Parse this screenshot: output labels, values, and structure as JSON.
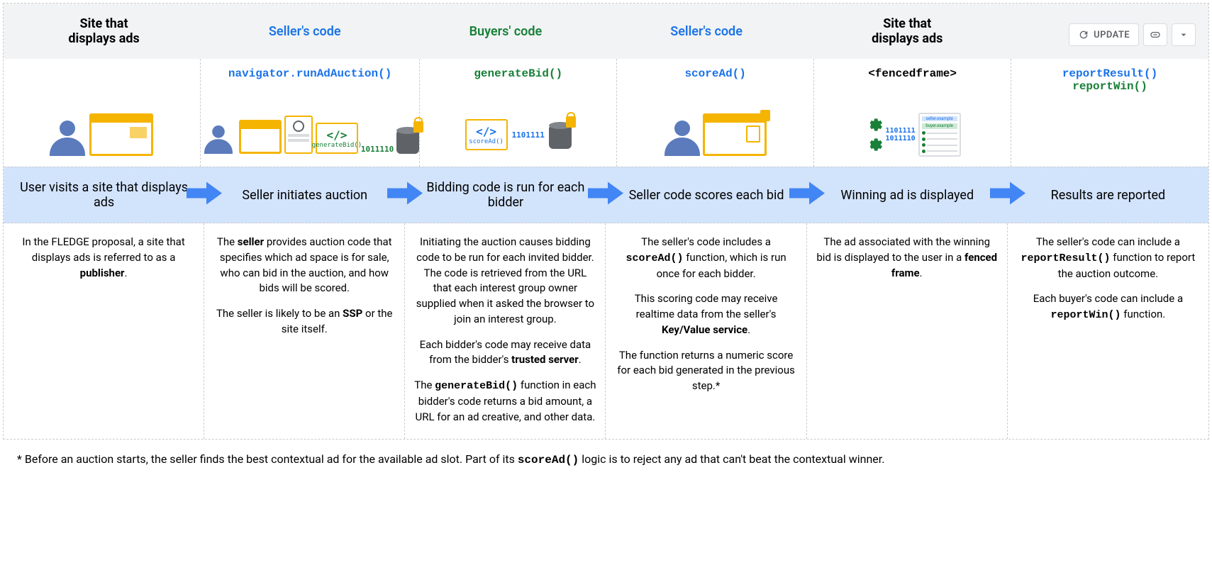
{
  "colors": {
    "seller": "#1a73e8",
    "buyer": "#188038",
    "band": "#d2e3fc",
    "arrow": "#4285f4",
    "border": "#cccccc",
    "headerbg": "#f1f3f4",
    "accent": "#f5b400",
    "person": "#5b7bbd"
  },
  "controls": {
    "update": "UPDATE"
  },
  "columns": [
    {
      "header": "Site that\ndisplays ads",
      "header_class": "",
      "code_html": "",
      "icon": "user-site",
      "flow": "User visits a site that displays ads",
      "desc_html": "<p>In the FLEDGE proposal, a site that displays ads is referred to as a <b>publisher</b>.</p>"
    },
    {
      "header": "Seller's code",
      "header_class": "seller",
      "code_html": "<span class='nav'>navigator.</span><span class='seller-fn'>runAdAuction()</span>",
      "icon": "seller-init",
      "flow": "Seller initiates auction",
      "desc_html": "<p>The <b>seller</b> provides auction code that specifies which ad space is for sale, who can bid in the auction, and how bids will be scored.</p><p>The seller is likely to be an <b>SSP</b> or the site itself.</p>"
    },
    {
      "header": "Buyers' code",
      "header_class": "buyer",
      "code_html": "<span class='buyer-fn'>generateBid()</span>",
      "icon": "buyer-bid",
      "flow": "Bidding code is run for each bidder",
      "desc_html": "<p>Initiating the auction causes bidding code to be run for each invited bidder.  The code is retrieved from the URL that each interest group owner supplied when it asked the browser to join an interest group.</p><p>Each bidder's code may receive data from the bidder's <b>trusted server</b>.</p><p>The <span class='mono'>generateBid()</span> function in each bidder's code returns a bid amount, a URL for an ad creative, and other data.</p>"
    },
    {
      "header": "Seller's code",
      "header_class": "seller",
      "code_html": "<span class='seller-fn'>scoreAd()</span>",
      "icon": "seller-score",
      "flow": "Seller code scores each bid",
      "desc_html": "<p>The seller's code includes a <span class='mono'>scoreAd()</span> function, which is run once for each bidder.</p><p>This scoring code may receive realtime data from the seller's <b>Key/Value service</b>.</p><p>The function returns a numeric score for each bid generated in the previous step.*</p>"
    },
    {
      "header": "Site that\ndisplays ads",
      "header_class": "",
      "code_html": "<span class='ff'>&lt;fencedframe&gt;</span>",
      "icon": "winning-ad",
      "flow": "Winning ad is displayed",
      "desc_html": "<p>The ad associated with the winning bid is displayed to the user in a <b>fenced frame</b>.</p>"
    },
    {
      "header": "",
      "header_class": "",
      "code_html": "<span class='seller-fn'>reportResult()</span><br><span class='buyer-fn'>reportWin()</span>",
      "icon": "",
      "flow": "Results are reported",
      "desc_html": "<p>The seller's code can include a <span class='mono'>reportResult()</span> function to report the auction outcome.</p><p>Each buyer's code can include a <span class='mono'>reportWin()</span> function.</p>"
    }
  ],
  "footer_html": "* Before an auction starts, the seller finds the best contextual ad for the available ad slot. Part of its <span class='mono'>scoreAd()</span> logic is to reject any ad that can't beat the contextual winner."
}
